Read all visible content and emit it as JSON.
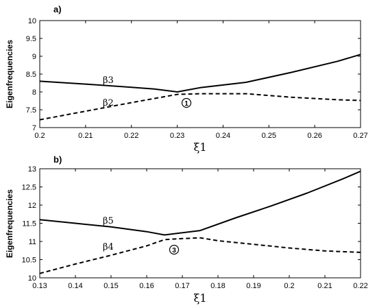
{
  "chart_data": [
    {
      "type": "line",
      "panel_label": "a)",
      "xlabel": "ξ1",
      "ylabel": "Eigenfrequencies",
      "xlim": [
        0.2,
        0.27
      ],
      "ylim": [
        7,
        10
      ],
      "xticks": [
        "0.2",
        "0.21",
        "0.22",
        "0.23",
        "0.24",
        "0.25",
        "0.26",
        "0.27"
      ],
      "yticks": [
        "7",
        "7.5",
        "8",
        "8.5",
        "9",
        "9.5",
        "10"
      ],
      "series": [
        {
          "name": "β3",
          "style": "solid",
          "x": [
            0.2,
            0.21,
            0.22,
            0.225,
            0.23,
            0.235,
            0.245,
            0.255,
            0.265,
            0.27
          ],
          "y": [
            8.3,
            8.22,
            8.13,
            8.08,
            8.0,
            8.12,
            8.27,
            8.55,
            8.86,
            9.05
          ]
        },
        {
          "name": "β2",
          "style": "dashed",
          "x": [
            0.2,
            0.21,
            0.22,
            0.23,
            0.235,
            0.245,
            0.255,
            0.265,
            0.27
          ],
          "y": [
            7.22,
            7.46,
            7.7,
            7.93,
            7.95,
            7.95,
            7.85,
            7.78,
            7.76
          ]
        }
      ],
      "annotation": {
        "text": "1",
        "x": 0.2325,
        "y": 7.82
      }
    },
    {
      "type": "line",
      "panel_label": "b)",
      "xlabel": "ξ1",
      "ylabel": "Eigenfrequencies",
      "xlim": [
        0.13,
        0.22
      ],
      "ylim": [
        10,
        13
      ],
      "xticks": [
        "0.13",
        "0.14",
        "0.15",
        "0.16",
        "0.17",
        "0.18",
        "0.19",
        "0.2",
        "0.21",
        "0.22"
      ],
      "yticks": [
        "10",
        "10.5",
        "11",
        "11.5",
        "12",
        "12.5",
        "13"
      ],
      "series": [
        {
          "name": "β5",
          "style": "solid",
          "x": [
            0.13,
            0.14,
            0.15,
            0.16,
            0.165,
            0.175,
            0.185,
            0.195,
            0.205,
            0.215,
            0.22
          ],
          "y": [
            11.6,
            11.5,
            11.4,
            11.27,
            11.18,
            11.3,
            11.65,
            11.98,
            12.33,
            12.72,
            12.93
          ]
        },
        {
          "name": "β4",
          "style": "dashed",
          "x": [
            0.13,
            0.14,
            0.15,
            0.16,
            0.165,
            0.17,
            0.175,
            0.18,
            0.19,
            0.2,
            0.21,
            0.22
          ],
          "y": [
            10.12,
            10.38,
            10.62,
            10.88,
            11.05,
            11.08,
            11.1,
            11.02,
            10.92,
            10.82,
            10.74,
            10.7
          ]
        }
      ],
      "annotation": {
        "text": "3",
        "x": 0.1695,
        "y": 10.83
      }
    }
  ]
}
